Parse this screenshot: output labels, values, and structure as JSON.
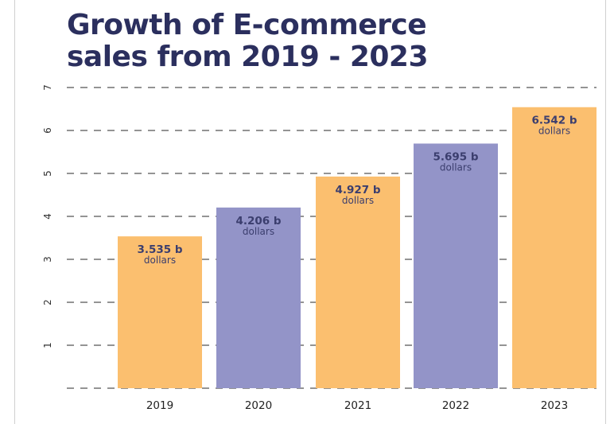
{
  "chart_data": {
    "type": "bar",
    "title_line1": "Growth of E-commerce",
    "title_line2": "sales from 2019 - 2023",
    "categories": [
      "2019",
      "2020",
      "2021",
      "2022",
      "2023"
    ],
    "values": [
      3.535,
      4.206,
      4.927,
      5.695,
      6.542
    ],
    "value_labels": [
      "3.535 b",
      "4.206 b",
      "4.927 b",
      "5.695 b",
      "6.542 b"
    ],
    "unit_label": "dollars",
    "ylim": [
      0,
      7
    ],
    "yticks": [
      "1",
      "2",
      "3",
      "4",
      "5",
      "6",
      "7"
    ],
    "grid": true,
    "colors": {
      "bar_orange": "#fbbf6f",
      "bar_purple": "#9394c8",
      "title": "#2b2f5e",
      "label": "#3b3e6e",
      "grid": "#555555"
    },
    "bar_colors": [
      "orange",
      "purple",
      "orange",
      "purple",
      "orange"
    ]
  }
}
